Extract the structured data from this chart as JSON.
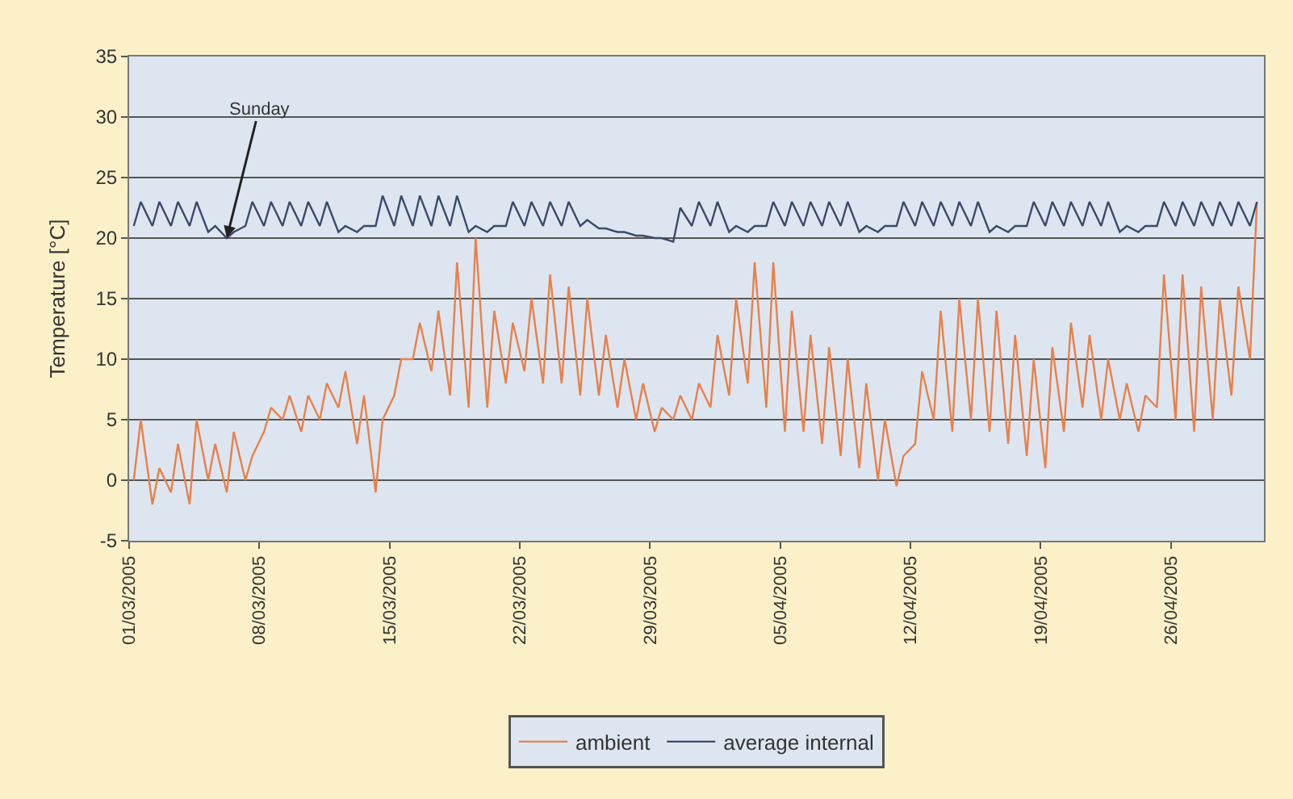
{
  "chart_data": {
    "type": "line",
    "ylabel": "Temperature [°C]",
    "x": [
      "2005-03-01T06:00",
      "2005-03-01T15:00",
      "2005-03-02T06:00",
      "2005-03-02T15:00",
      "2005-03-03T06:00",
      "2005-03-03T15:00",
      "2005-03-04T06:00",
      "2005-03-04T15:00",
      "2005-03-05T06:00",
      "2005-03-05T15:00",
      "2005-03-06T06:00",
      "2005-03-06T15:00",
      "2005-03-07T06:00",
      "2005-03-07T15:00",
      "2005-03-08T06:00",
      "2005-03-08T15:00",
      "2005-03-09T06:00",
      "2005-03-09T15:00",
      "2005-03-10T06:00",
      "2005-03-10T15:00",
      "2005-03-11T06:00",
      "2005-03-11T15:00",
      "2005-03-12T06:00",
      "2005-03-12T15:00",
      "2005-03-13T06:00",
      "2005-03-13T15:00",
      "2005-03-14T06:00",
      "2005-03-14T15:00",
      "2005-03-15T06:00",
      "2005-03-15T15:00",
      "2005-03-16T06:00",
      "2005-03-16T15:00",
      "2005-03-17T06:00",
      "2005-03-17T15:00",
      "2005-03-18T06:00",
      "2005-03-18T15:00",
      "2005-03-19T06:00",
      "2005-03-19T15:00",
      "2005-03-20T06:00",
      "2005-03-20T15:00",
      "2005-03-21T06:00",
      "2005-03-21T15:00",
      "2005-03-22T06:00",
      "2005-03-22T15:00",
      "2005-03-23T06:00",
      "2005-03-23T15:00",
      "2005-03-24T06:00",
      "2005-03-24T15:00",
      "2005-03-25T06:00",
      "2005-03-25T15:00",
      "2005-03-26T06:00",
      "2005-03-26T15:00",
      "2005-03-27T06:00",
      "2005-03-27T15:00",
      "2005-03-28T06:00",
      "2005-03-28T15:00",
      "2005-03-29T06:00",
      "2005-03-29T15:00",
      "2005-03-30T06:00",
      "2005-03-30T15:00",
      "2005-03-31T06:00",
      "2005-03-31T15:00",
      "2005-04-01T06:00",
      "2005-04-01T15:00",
      "2005-04-02T06:00",
      "2005-04-02T15:00",
      "2005-04-03T06:00",
      "2005-04-03T15:00",
      "2005-04-04T06:00",
      "2005-04-04T15:00",
      "2005-04-05T06:00",
      "2005-04-05T15:00",
      "2005-04-06T06:00",
      "2005-04-06T15:00",
      "2005-04-07T06:00",
      "2005-04-07T15:00",
      "2005-04-08T06:00",
      "2005-04-08T15:00",
      "2005-04-09T06:00",
      "2005-04-09T15:00",
      "2005-04-10T06:00",
      "2005-04-10T15:00",
      "2005-04-11T06:00",
      "2005-04-11T15:00",
      "2005-04-12T06:00",
      "2005-04-12T15:00",
      "2005-04-13T06:00",
      "2005-04-13T15:00",
      "2005-04-14T06:00",
      "2005-04-14T15:00",
      "2005-04-15T06:00",
      "2005-04-15T15:00",
      "2005-04-16T06:00",
      "2005-04-16T15:00",
      "2005-04-17T06:00",
      "2005-04-17T15:00",
      "2005-04-18T06:00",
      "2005-04-18T15:00",
      "2005-04-19T06:00",
      "2005-04-19T15:00",
      "2005-04-20T06:00",
      "2005-04-20T15:00",
      "2005-04-21T06:00",
      "2005-04-21T15:00",
      "2005-04-22T06:00",
      "2005-04-22T15:00",
      "2005-04-23T06:00",
      "2005-04-23T15:00",
      "2005-04-24T06:00",
      "2005-04-24T15:00",
      "2005-04-25T06:00",
      "2005-04-25T15:00",
      "2005-04-26T06:00",
      "2005-04-26T15:00",
      "2005-04-27T06:00",
      "2005-04-27T15:00",
      "2005-04-28T06:00",
      "2005-04-28T15:00",
      "2005-04-29T06:00",
      "2005-04-29T15:00",
      "2005-04-30T06:00",
      "2005-04-30T15:00"
    ],
    "series": [
      {
        "name": "ambient",
        "color": "#e8804a",
        "values": [
          0,
          5,
          -2,
          1,
          -1,
          3,
          -2,
          5,
          0,
          3,
          -1,
          4,
          0,
          2,
          4,
          6,
          5,
          7,
          4,
          7,
          5,
          8,
          6,
          9,
          3,
          7,
          -1,
          5,
          7,
          10,
          10,
          13,
          9,
          14,
          7,
          18,
          6,
          20,
          6,
          14,
          8,
          13,
          9,
          15,
          8,
          17,
          8,
          16,
          7,
          15,
          7,
          12,
          6,
          10,
          5,
          8,
          4,
          6,
          5,
          7,
          5,
          8,
          6,
          12,
          7,
          15,
          8,
          18,
          6,
          18,
          4,
          14,
          4,
          12,
          3,
          11,
          2,
          10,
          1,
          8,
          0,
          5,
          -0.5,
          2,
          3,
          9,
          5,
          14,
          4,
          15,
          5,
          15,
          4,
          14,
          3,
          12,
          2,
          10,
          1,
          11,
          4,
          13,
          6,
          12,
          5,
          10,
          5,
          8,
          4,
          7,
          6,
          17,
          5,
          17,
          4,
          16,
          5,
          15,
          7,
          16,
          10,
          23
        ]
      },
      {
        "name": "average internal",
        "color": "#3a4a6a",
        "values": [
          21,
          23,
          21,
          23,
          21,
          23,
          21,
          23,
          20.5,
          21,
          20,
          20.5,
          21,
          23,
          21,
          23,
          21,
          23,
          21,
          23,
          21,
          23,
          20.5,
          21,
          20.5,
          21,
          21,
          23.5,
          21,
          23.5,
          21,
          23.5,
          21,
          23.5,
          21,
          23.5,
          20.5,
          21,
          20.5,
          21,
          21,
          23,
          21,
          23,
          21,
          23,
          21,
          23,
          21,
          21.5,
          20.8,
          20.8,
          20.5,
          20.5,
          20.2,
          20.2,
          20,
          20,
          19.7,
          22.5,
          21,
          23,
          21,
          23,
          20.5,
          21,
          20.5,
          21,
          21,
          23,
          21,
          23,
          21,
          23,
          21,
          23,
          21,
          23,
          20.5,
          21,
          20.5,
          21,
          21,
          23,
          21,
          23,
          21,
          23,
          21,
          23,
          21,
          23,
          20.5,
          21,
          20.5,
          21,
          21,
          23,
          21,
          23,
          21,
          23,
          21,
          23,
          21,
          23,
          20.5,
          21,
          20.5,
          21,
          21,
          23,
          21,
          23,
          21,
          23,
          21,
          23,
          21,
          23,
          21,
          23
        ]
      }
    ],
    "xlim": [
      "2005-03-01",
      "2005-05-01"
    ],
    "xticks": [
      {
        "value": "2005-03-01",
        "label": "01/03/2005"
      },
      {
        "value": "2005-03-08",
        "label": "08/03/2005"
      },
      {
        "value": "2005-03-15",
        "label": "15/03/2005"
      },
      {
        "value": "2005-03-22",
        "label": "22/03/2005"
      },
      {
        "value": "2005-03-29",
        "label": "29/03/2005"
      },
      {
        "value": "2005-04-05",
        "label": "05/04/2005"
      },
      {
        "value": "2005-04-12",
        "label": "12/04/2005"
      },
      {
        "value": "2005-04-19",
        "label": "19/04/2005"
      },
      {
        "value": "2005-04-26",
        "label": "26/04/2005"
      }
    ],
    "ylim": [
      -5,
      35
    ],
    "yticks": [
      -5,
      0,
      5,
      10,
      15,
      20,
      25,
      30,
      35
    ],
    "annotations": [
      {
        "text": "Sunday",
        "x": "2005-03-06T06:00",
        "y": 20
      }
    ],
    "grid": "y",
    "legend": "bottom",
    "line_style": "solid"
  }
}
